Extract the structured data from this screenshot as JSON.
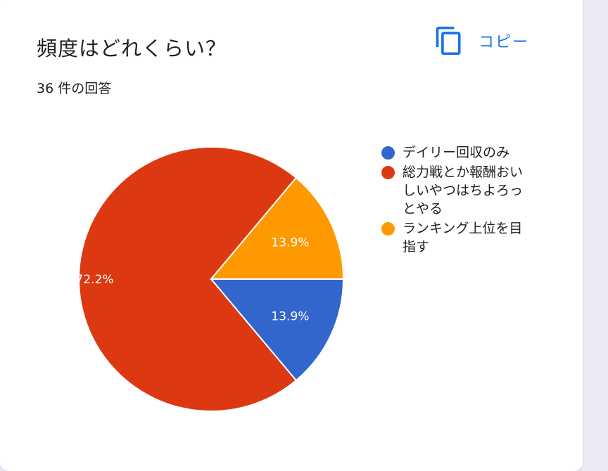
{
  "title": "頻度はどれくらい？",
  "response_count": "36 件の回答",
  "copy_button": {
    "label": "コピー",
    "icon": "copy-icon"
  },
  "colors": {
    "accent": "#1a73e8"
  },
  "chart_data": {
    "type": "pie",
    "labels": [
      "デイリー回収のみ",
      "総力戦とか報酬おいしいやつはちよろっとやる",
      "ランキング上位を目指す"
    ],
    "values": [
      13.9,
      72.2,
      13.9
    ],
    "value_labels": [
      "13.9%",
      "72.2%",
      "13.9%"
    ],
    "colors": [
      "#3366cc",
      "#dc3912",
      "#ff9900"
    ],
    "legend_position": "right",
    "legend_lines": [
      [
        "デイリー回収のみ"
      ],
      [
        "総力戦とか報酬おい",
        "しいやつはちよろっ",
        "とやる"
      ],
      [
        "ランキング上位を目",
        "指す"
      ]
    ]
  }
}
